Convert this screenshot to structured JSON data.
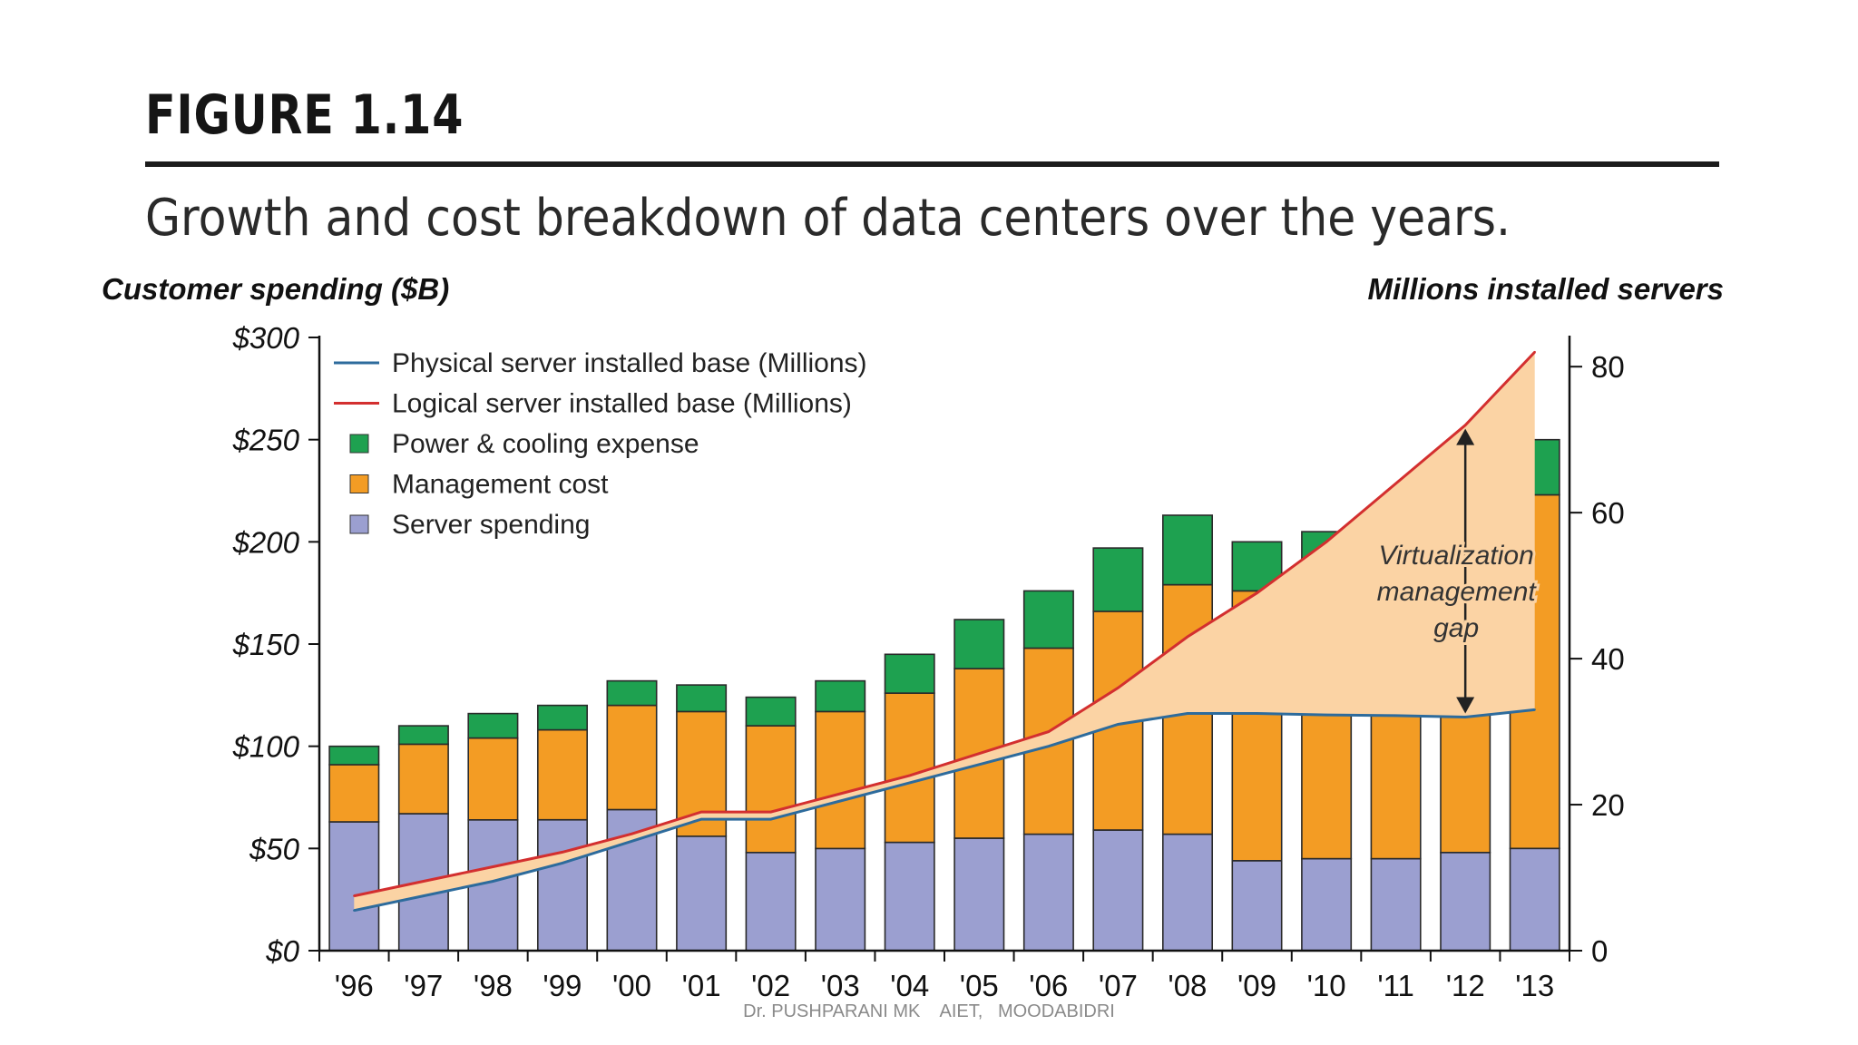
{
  "header": {
    "figure_label": "FIGURE 1.14",
    "caption": "Growth and cost breakdown of data centers over the years."
  },
  "footer": {
    "credit": "Dr. PUSHPARANI MK    AIET,   MOODABIDRI"
  },
  "chart_data": {
    "type": "bar",
    "stacked": true,
    "title": "Growth and cost breakdown of data centers over the years.",
    "left_axis_label": "Customer spending ($B)",
    "right_axis_label": "Millions installed servers",
    "left_ylim": [
      0,
      300
    ],
    "right_ylim": [
      0,
      84
    ],
    "left_ticks": [
      "$0",
      "$50",
      "$100",
      "$150",
      "$200",
      "$250",
      "$300"
    ],
    "left_tick_values": [
      0,
      50,
      100,
      150,
      200,
      250,
      300
    ],
    "right_ticks": [
      "0",
      "20",
      "40",
      "60",
      "80"
    ],
    "right_tick_values": [
      0,
      20,
      40,
      60,
      80
    ],
    "categories": [
      "'96",
      "'97",
      "'98",
      "'99",
      "'00",
      "'01",
      "'02",
      "'03",
      "'04",
      "'05",
      "'06",
      "'07",
      "'08",
      "'09",
      "'10",
      "'11",
      "'12",
      "'13"
    ],
    "series": [
      {
        "name": "Server spending",
        "kind": "bar",
        "axis": "left",
        "color": "#9b9fd0",
        "values": [
          63,
          67,
          64,
          64,
          69,
          56,
          48,
          50,
          53,
          55,
          57,
          59,
          57,
          44,
          45,
          45,
          48,
          50
        ]
      },
      {
        "name": "Management cost",
        "kind": "bar",
        "axis": "left",
        "color": "#f39c24",
        "values": [
          28,
          34,
          40,
          44,
          51,
          61,
          62,
          67,
          73,
          83,
          91,
          107,
          122,
          132,
          135,
          138,
          148,
          173
        ]
      },
      {
        "name": "Power & cooling expense",
        "kind": "bar",
        "axis": "left",
        "color": "#1ea150",
        "values": [
          9,
          9,
          12,
          12,
          12,
          13,
          14,
          15,
          19,
          24,
          28,
          31,
          34,
          24,
          25,
          29,
          35,
          27
        ]
      },
      {
        "name": "Physical server installed base (Millions)",
        "kind": "line",
        "axis": "right",
        "color": "#2d6b9c",
        "values": [
          5.5,
          7.5,
          9.5,
          12,
          15,
          18,
          18,
          20.5,
          23,
          25.5,
          28,
          31,
          32.5,
          32.5,
          32.3,
          32.2,
          32,
          33
        ]
      },
      {
        "name": "Logical server installed base (Millions)",
        "kind": "line",
        "axis": "right",
        "color": "#d32f2f",
        "values": [
          7.5,
          9.5,
          11.5,
          13.5,
          16,
          19,
          19,
          21.5,
          24,
          27,
          30,
          36,
          43,
          49,
          56,
          64,
          72,
          82
        ]
      }
    ],
    "legend_order": [
      "Physical server installed base (Millions)",
      "Logical server installed base (Millions)",
      "Power & cooling expense",
      "Management cost",
      "Server spending"
    ],
    "legend_position": "top-left",
    "gap_fill_color": "#fbd3a4",
    "annotation": {
      "lines": [
        "Virtualization",
        "management",
        "gap"
      ],
      "category": "'12"
    }
  }
}
